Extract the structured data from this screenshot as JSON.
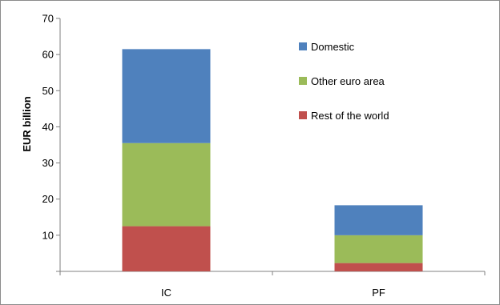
{
  "chart_data": {
    "type": "bar",
    "stacked": true,
    "categories": [
      "IC",
      "PF"
    ],
    "series": [
      {
        "name": "Rest of the world",
        "values": [
          12.5,
          2.3
        ],
        "color": "#c0504d"
      },
      {
        "name": "Other euro area",
        "values": [
          23.0,
          7.7
        ],
        "color": "#9bbb59"
      },
      {
        "name": "Domestic",
        "values": [
          26.0,
          8.3
        ],
        "color": "#4f81bd"
      }
    ],
    "title": "",
    "xlabel": "",
    "ylabel": "EUR billion",
    "ylim": [
      0,
      70
    ],
    "yticks": [
      0,
      10,
      20,
      30,
      40,
      50,
      60,
      70
    ],
    "ytick_labels": [
      "",
      "10",
      "20",
      "30",
      "40",
      "50",
      "60",
      "70"
    ],
    "legend_order": [
      "Domestic",
      "Other euro area",
      "Rest of the world"
    ],
    "legend_position": "top-right",
    "grid": false
  }
}
